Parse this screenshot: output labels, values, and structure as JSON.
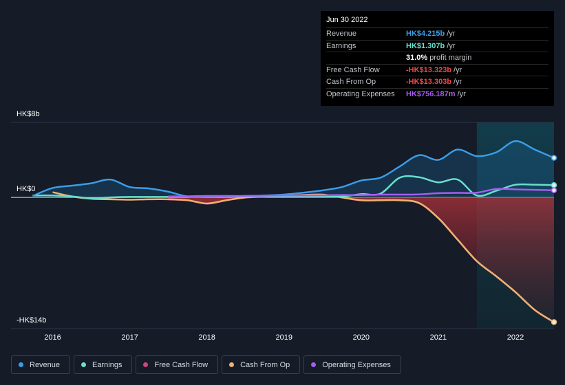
{
  "chart_data": {
    "type": "line",
    "x": [
      2015.74,
      2016,
      2016.25,
      2016.5,
      2016.75,
      2017,
      2017.25,
      2017.5,
      2017.75,
      2018,
      2018.25,
      2018.5,
      2018.75,
      2019,
      2019.25,
      2019.5,
      2019.75,
      2020,
      2020.25,
      2020.5,
      2020.75,
      2021,
      2021.25,
      2021.5,
      2021.75,
      2022,
      2022.25,
      2022.5
    ],
    "xlim": [
      2015.46,
      2022.5
    ],
    "xticks": [
      2016,
      2017,
      2018,
      2019,
      2020,
      2021,
      2022
    ],
    "ylim": [
      -14,
      8
    ],
    "yticks": [
      {
        "value": 8,
        "label": "HK$8b"
      },
      {
        "value": 0,
        "label": "HK$0"
      },
      {
        "value": -14,
        "label": "-HK$14b"
      }
    ],
    "series": [
      {
        "name": "Revenue",
        "color": "#3b9de6",
        "fill": true,
        "values": [
          0.15,
          1.0,
          1.25,
          1.5,
          1.9,
          1.1,
          0.95,
          0.6,
          0.1,
          0.1,
          0.1,
          0.15,
          0.2,
          0.3,
          0.5,
          0.75,
          1.1,
          1.8,
          2.1,
          3.3,
          4.5,
          4.0,
          5.1,
          4.4,
          4.8,
          6.0,
          5.1,
          4.215
        ]
      },
      {
        "name": "Earnings",
        "color": "#67e0cc",
        "fill": false,
        "values": [
          0.2,
          0.2,
          0.1,
          -0.1,
          0.0,
          0.05,
          0.05,
          0.05,
          0.05,
          0.05,
          0.05,
          0.1,
          0.1,
          0.1,
          0.1,
          0.1,
          0.1,
          0.35,
          0.4,
          2.1,
          2.15,
          1.6,
          1.9,
          0.2,
          0.7,
          1.35,
          1.35,
          1.307
        ]
      },
      {
        "name": "Free Cash Flow",
        "color": "#d1457a",
        "fill": true,
        "values": [
          null,
          null,
          null,
          null,
          null,
          null,
          null,
          -0.22,
          -0.32,
          -0.67,
          -0.32,
          -0.02,
          0.08,
          0.13,
          0.23,
          0.28,
          -0.02,
          -0.32,
          -0.32,
          -0.32,
          -0.62,
          -2.22,
          -4.52,
          -6.82,
          -8.42,
          -10.12,
          -12.02,
          -13.323
        ]
      },
      {
        "name": "Cash From Op",
        "color": "#eeb36e",
        "fill": false,
        "values": [
          null,
          0.55,
          0.1,
          -0.15,
          -0.2,
          -0.25,
          -0.2,
          -0.2,
          -0.3,
          -0.65,
          -0.3,
          0.0,
          0.1,
          0.15,
          0.25,
          0.3,
          0.0,
          -0.3,
          -0.3,
          -0.3,
          -0.6,
          -2.2,
          -4.5,
          -6.8,
          -8.4,
          -10.1,
          -12.0,
          -13.303
        ]
      },
      {
        "name": "Operating Expenses",
        "color": "#a35ef0",
        "fill": false,
        "values": [
          null,
          null,
          null,
          null,
          null,
          null,
          null,
          0.1,
          0.12,
          0.15,
          0.15,
          0.15,
          0.18,
          0.2,
          0.2,
          0.22,
          0.25,
          0.25,
          0.3,
          0.3,
          0.32,
          0.45,
          0.48,
          0.5,
          0.9,
          0.85,
          0.8,
          0.756
        ]
      }
    ],
    "tooltip": {
      "date": "Jun 30 2022",
      "rows": [
        {
          "label": "Revenue",
          "value": "HK$4.215b",
          "unit": "/yr",
          "color": "#3b9de6"
        },
        {
          "label": "Earnings",
          "value": "HK$1.307b",
          "unit": "/yr",
          "color": "#67e0cc"
        },
        {
          "value": "31.0%",
          "unit": "profit margin",
          "color": "#ffffff"
        },
        {
          "label": "Free Cash Flow",
          "value": "-HK$13.323b",
          "unit": "/yr",
          "color": "#f0474a"
        },
        {
          "label": "Cash From Op",
          "value": "-HK$13.303b",
          "unit": "/yr",
          "color": "#f0474a"
        },
        {
          "label": "Operating Expenses",
          "value": "HK$756.187m",
          "unit": "/yr",
          "color": "#a35ef0"
        }
      ]
    }
  }
}
